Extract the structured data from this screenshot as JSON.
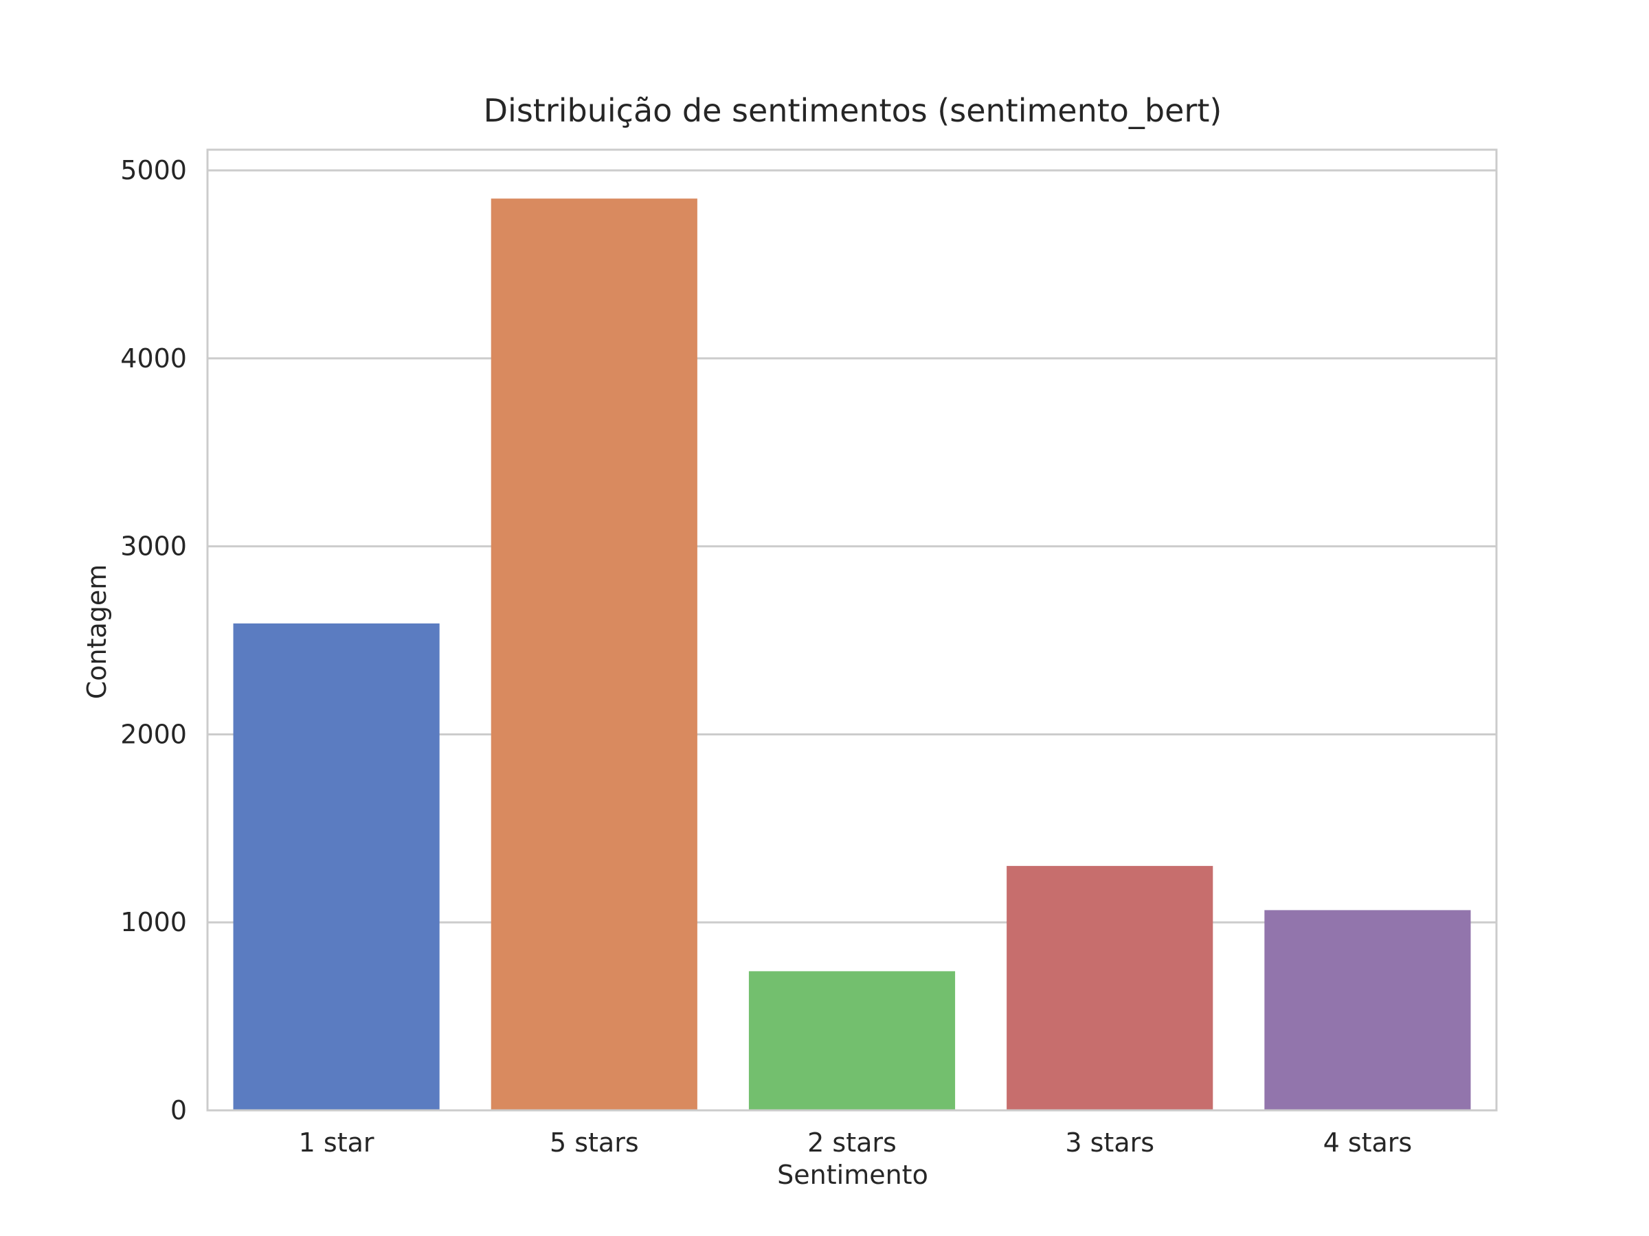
{
  "chart_data": {
    "type": "bar",
    "title": "Distribuição de sentimentos (sentimento_bert)",
    "xlabel": "Sentimento",
    "ylabel": "Contagem",
    "categories": [
      "1 star",
      "5 stars",
      "2 stars",
      "3 stars",
      "4 stars"
    ],
    "values": [
      2590,
      4850,
      740,
      1300,
      1065
    ],
    "ylim": [
      0,
      5110
    ],
    "yticks": [
      0,
      1000,
      2000,
      3000,
      4000,
      5000
    ],
    "grid": true,
    "legend": "none",
    "colors": [
      "#5b7cc1",
      "#d98a5f",
      "#73bf6e",
      "#c76e6d",
      "#9275ac"
    ],
    "axes_style": {
      "background": "#ffffff",
      "grid_color": "#cccccc",
      "spine_color": "#cccccc"
    }
  }
}
